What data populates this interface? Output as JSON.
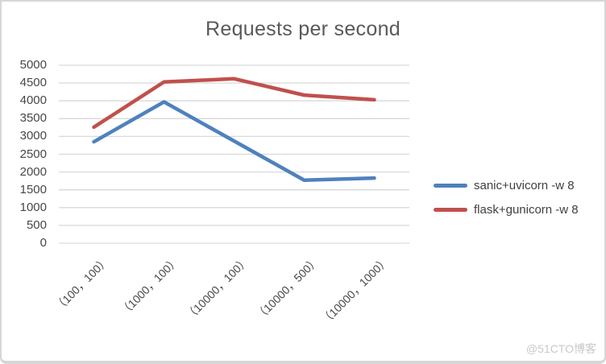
{
  "watermark": {
    "text": "@51CTO博客"
  },
  "chart_data": {
    "type": "line",
    "title": "Requests per second",
    "xlabel": "",
    "ylabel": "",
    "categories": [
      "（100，100）",
      "（1000，100）",
      "（10000，100）",
      "（10000，500）",
      "（10000，1000）"
    ],
    "series": [
      {
        "name": "sanic+uvicorn -w 8",
        "color": "#4F81BD",
        "values": [
          2850,
          3970,
          2870,
          1770,
          1830
        ]
      },
      {
        "name": "flask+gunicorn -w 8",
        "color": "#C0504D",
        "values": [
          3260,
          4530,
          4620,
          4160,
          4030
        ]
      }
    ],
    "ylim": [
      0,
      5000
    ],
    "yticks": [
      0,
      500,
      1000,
      1500,
      2000,
      2500,
      3000,
      3500,
      4000,
      4500,
      5000
    ],
    "grid": true,
    "legend_position": "right",
    "gridline_color": "#D9D9D9",
    "title_color": "#595959",
    "tick_label_color": "#474747",
    "watermark_color": "#C9C9C9"
  }
}
